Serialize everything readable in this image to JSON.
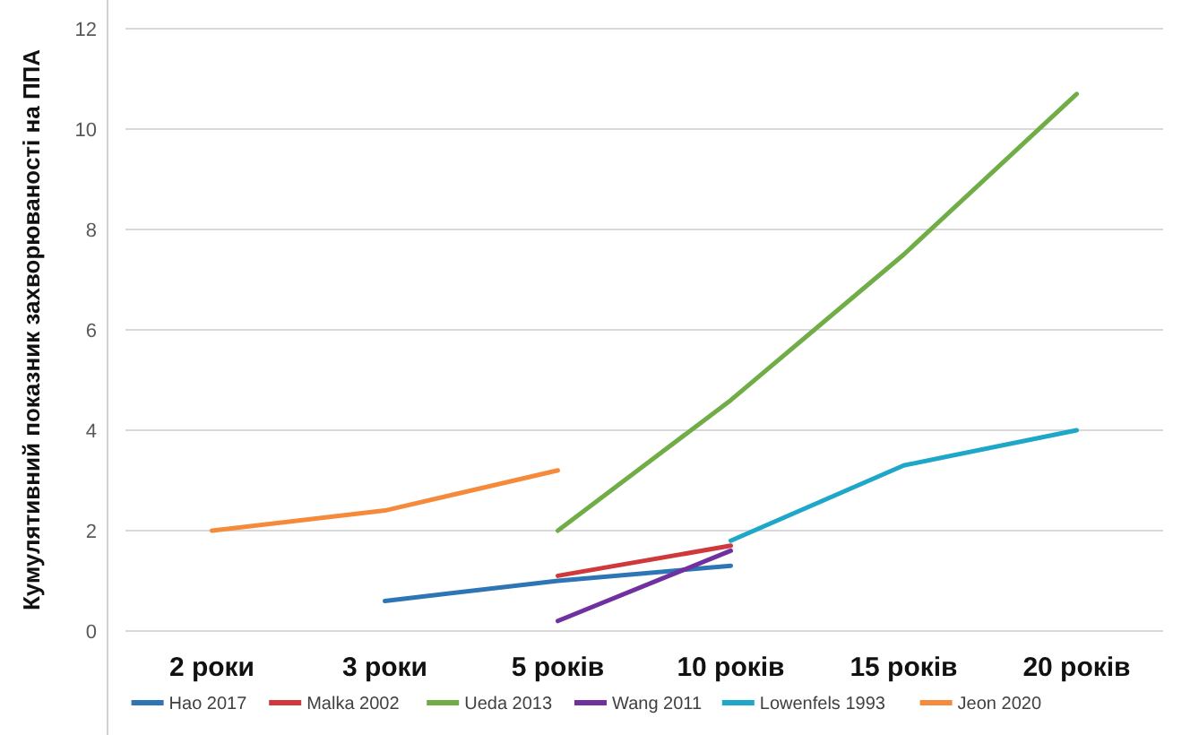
{
  "chart_data": {
    "type": "line",
    "ylabel": "Кумулятивний показник захворюваності на ППА",
    "categories": [
      "2 роки",
      "3 роки",
      "5 років",
      "10 років",
      "15 років",
      "20 років"
    ],
    "ylim": [
      0,
      12
    ],
    "yticks": [
      0,
      2,
      4,
      6,
      8,
      10,
      12
    ],
    "grid": "y",
    "legend": "bottom",
    "series": [
      {
        "name": "Hao 2017",
        "color": "#2e75b6",
        "values": [
          null,
          0.6,
          1.0,
          1.3,
          null,
          null
        ]
      },
      {
        "name": "Malka 2002",
        "color": "#d0393b",
        "values": [
          null,
          null,
          1.1,
          1.7,
          null,
          null
        ]
      },
      {
        "name": "Ueda 2013",
        "color": "#70ad47",
        "values": [
          null,
          null,
          2.0,
          4.6,
          7.5,
          10.7
        ]
      },
      {
        "name": "Wang 2011",
        "color": "#7030a0",
        "values": [
          null,
          null,
          0.2,
          1.6,
          null,
          null
        ]
      },
      {
        "name": "Lowenfels 1993",
        "color": "#1ea7c8",
        "values": [
          null,
          null,
          null,
          1.8,
          3.3,
          4.0
        ]
      },
      {
        "name": "Jeon 2020",
        "color": "#f58a3a",
        "values": [
          2.0,
          2.4,
          3.2,
          null,
          null,
          null
        ]
      }
    ]
  }
}
